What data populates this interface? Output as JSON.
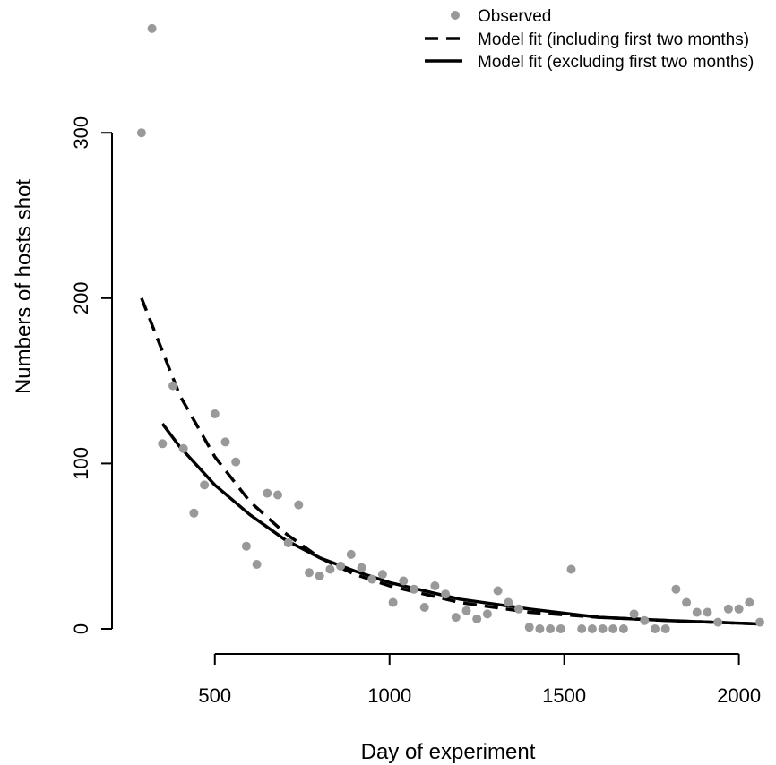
{
  "chart_data": {
    "type": "scatter",
    "xlabel": "Day of experiment",
    "ylabel": "Numbers of hosts shot",
    "xlim": [
      280,
      2060
    ],
    "ylim": [
      0,
      370
    ],
    "x_ticks": [
      "500",
      "1000",
      "1500",
      "2000"
    ],
    "x_tick_values": [
      500,
      1000,
      1500,
      2000
    ],
    "y_ticks": [
      "0",
      "100",
      "200",
      "300"
    ],
    "y_tick_values": [
      0,
      100,
      200,
      300
    ],
    "legend_position": "top-right",
    "legend": [
      {
        "label": "Observed",
        "style": "point"
      },
      {
        "label": "Model fit (including first two months)",
        "style": "dashed"
      },
      {
        "label": "Model fit (excluding first two months)",
        "style": "solid"
      }
    ],
    "colors": {
      "observed": "#999999",
      "fit": "#000000"
    },
    "series": [
      {
        "name": "Observed",
        "type": "scatter",
        "x": [
          290,
          320,
          350,
          380,
          410,
          440,
          470,
          500,
          530,
          560,
          590,
          620,
          650,
          680,
          710,
          740,
          770,
          800,
          830,
          860,
          890,
          920,
          950,
          980,
          1010,
          1040,
          1070,
          1100,
          1130,
          1160,
          1190,
          1220,
          1250,
          1280,
          1310,
          1340,
          1370,
          1400,
          1430,
          1460,
          1490,
          1520,
          1550,
          1580,
          1610,
          1640,
          1670,
          1700,
          1730,
          1760,
          1790,
          1820,
          1850,
          1880,
          1910,
          1940,
          1970,
          2000,
          2030,
          2060
        ],
        "y": [
          300,
          363,
          112,
          147,
          109,
          70,
          87,
          130,
          113,
          101,
          50,
          39,
          82,
          81,
          52,
          75,
          34,
          32,
          36,
          38,
          45,
          37,
          30,
          33,
          16,
          29,
          24,
          13,
          26,
          21,
          7,
          11,
          6,
          9,
          23,
          16,
          12,
          1,
          0,
          0,
          0,
          36,
          0,
          0,
          0,
          0,
          0,
          9,
          5,
          0,
          0,
          24,
          16,
          10,
          10,
          4,
          12,
          12,
          16,
          4
        ]
      },
      {
        "name": "Model fit (including first two months)",
        "type": "line",
        "style": "dashed",
        "x": [
          290,
          400,
          500,
          600,
          700,
          800,
          900,
          1000,
          1200,
          1400,
          1600,
          1800,
          2060
        ],
        "y": [
          200,
          141,
          104,
          77,
          58,
          43,
          33,
          26,
          16,
          10,
          7,
          5,
          3
        ]
      },
      {
        "name": "Model fit (excluding first two months)",
        "type": "line",
        "style": "solid",
        "x": [
          350,
          400,
          500,
          600,
          700,
          800,
          900,
          1000,
          1200,
          1400,
          1600,
          1800,
          2060
        ],
        "y": [
          124,
          110,
          87,
          69,
          54,
          43,
          35,
          28,
          18,
          12,
          7,
          5,
          3
        ]
      }
    ]
  }
}
